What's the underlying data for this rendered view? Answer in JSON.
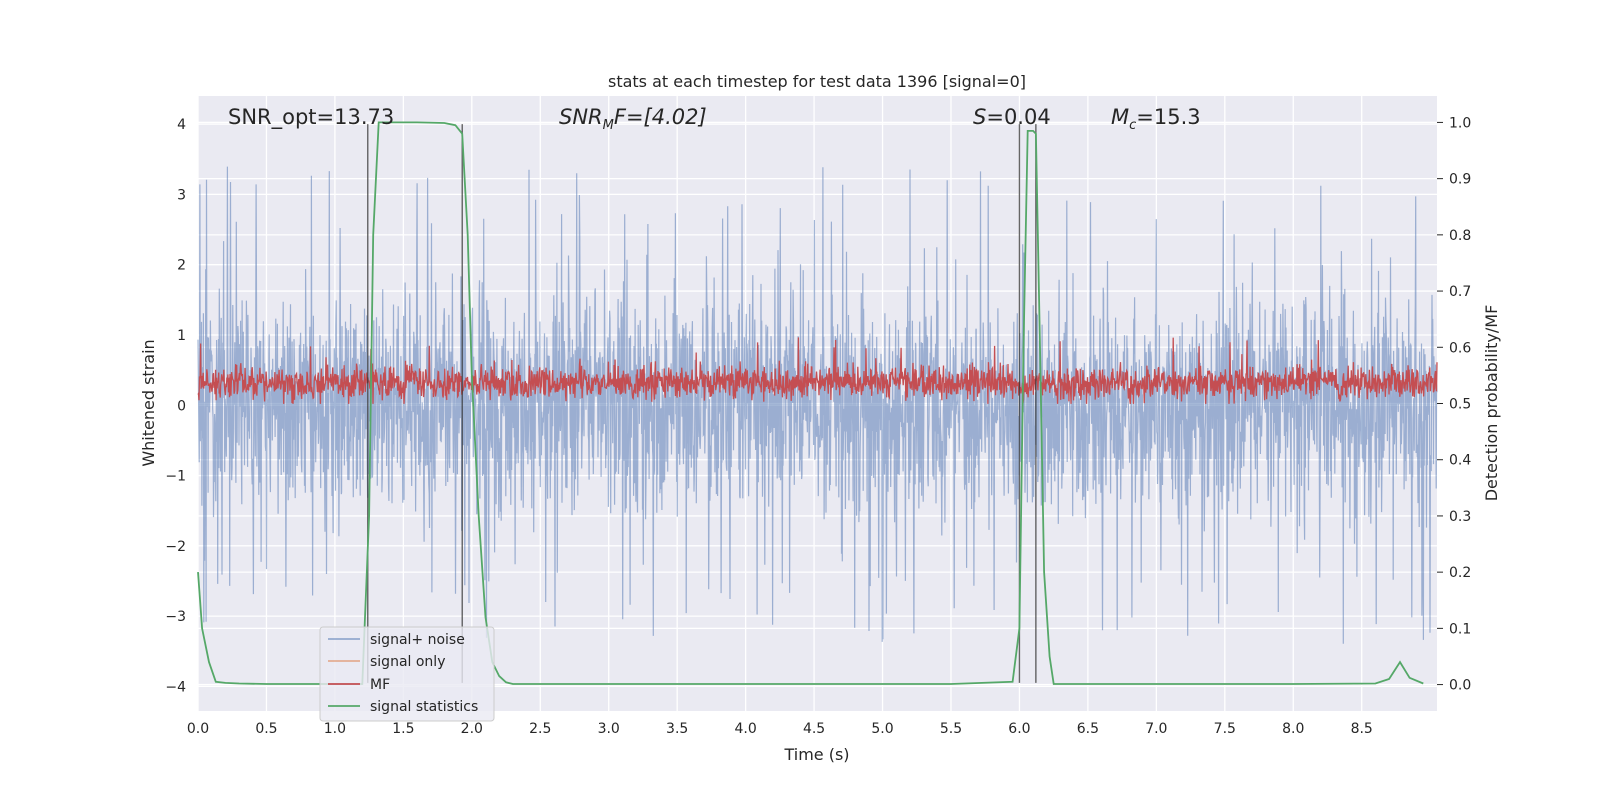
{
  "chart_data": {
    "type": "line",
    "title": "stats at each timestep for test data 1396 [signal=0]",
    "xlabel": "Time (s)",
    "ylabel": "Whitened strain",
    "y2label": "Detection probability/MF",
    "xlim": [
      0,
      9.05
    ],
    "ylim": [
      -4.35,
      4.4
    ],
    "y2lim": [
      -0.047,
      1.047
    ],
    "xticks": [
      0.0,
      0.5,
      1.0,
      1.5,
      2.0,
      2.5,
      3.0,
      3.5,
      4.0,
      4.5,
      5.0,
      5.5,
      6.0,
      6.5,
      7.0,
      7.5,
      8.0,
      8.5
    ],
    "xtick_labels": [
      "0.0",
      "0.5",
      "1.0",
      "1.5",
      "2.0",
      "2.5",
      "3.0",
      "3.5",
      "4.0",
      "4.5",
      "5.0",
      "5.5",
      "6.0",
      "6.5",
      "7.0",
      "7.5",
      "8.0",
      "8.5"
    ],
    "yticks": [
      -4,
      -3,
      -2,
      -1,
      0,
      1,
      2,
      3,
      4
    ],
    "ytick_labels": [
      "−4",
      "−3",
      "−2",
      "−1",
      "0",
      "1",
      "2",
      "3",
      "4"
    ],
    "y2ticks": [
      0.0,
      0.1,
      0.2,
      0.3,
      0.4,
      0.5,
      0.6,
      0.7,
      0.8,
      0.9,
      1.0
    ],
    "y2tick_labels": [
      "0.0",
      "0.1",
      "0.2",
      "0.3",
      "0.4",
      "0.5",
      "0.6",
      "0.7",
      "0.8",
      "0.9",
      "1.0"
    ],
    "grid": true,
    "legend_position": "lower-left",
    "annotations": {
      "snr_opt": "SNR_opt=13.73",
      "snr_mf_prefix": "SNR",
      "snr_mf_sub": "M",
      "snr_mf_suffix": "F=[4.02]",
      "s_var": "S",
      "s_value": "=0.04",
      "mc_var": "M",
      "mc_sub": "c",
      "mc_value": "=15.3"
    },
    "vlines": [
      1.24,
      1.93,
      6.0,
      6.12
    ],
    "series": [
      {
        "name": "signal+ noise",
        "color": "#4c72b0",
        "axis": "left",
        "style": "noise band",
        "description_values": {
          "typical_range": [
            -2.2,
            2.3
          ],
          "max": 3.55,
          "min": -3.9
        }
      },
      {
        "name": "signal only",
        "color": "#dd8452",
        "axis": "left",
        "x": [],
        "y": []
      },
      {
        "name": "MF",
        "color": "#c44e52",
        "axis": "left",
        "style": "noise band",
        "description_values": {
          "typical_range": [
            0.05,
            0.8
          ],
          "max": 1.0,
          "min": 0.0
        }
      },
      {
        "name": "signal statistics",
        "color": "#55a868",
        "axis": "right",
        "x": [
          0.0,
          0.03,
          0.08,
          0.13,
          0.2,
          0.3,
          0.5,
          1.0,
          1.2,
          1.25,
          1.28,
          1.32,
          1.4,
          1.6,
          1.8,
          1.88,
          1.93,
          1.97,
          2.0,
          2.05,
          2.1,
          2.15,
          2.2,
          2.25,
          2.3,
          2.4,
          3.0,
          4.0,
          5.0,
          5.5,
          5.95,
          6.0,
          6.03,
          6.06,
          6.1,
          6.12,
          6.15,
          6.18,
          6.22,
          6.25,
          7.0,
          8.0,
          8.6,
          8.7,
          8.78,
          8.85,
          8.95
        ],
        "y": [
          0.2,
          0.1,
          0.04,
          0.005,
          0.003,
          0.002,
          0.001,
          0.001,
          0.001,
          0.3,
          0.8,
          1.0,
          1.0,
          1.0,
          0.999,
          0.995,
          0.98,
          0.8,
          0.55,
          0.3,
          0.12,
          0.04,
          0.015,
          0.004,
          0.001,
          0.001,
          0.001,
          0.001,
          0.001,
          0.001,
          0.005,
          0.1,
          0.6,
          0.985,
          0.985,
          0.98,
          0.6,
          0.2,
          0.05,
          0.001,
          0.001,
          0.001,
          0.002,
          0.01,
          0.04,
          0.012,
          0.002
        ]
      }
    ]
  }
}
